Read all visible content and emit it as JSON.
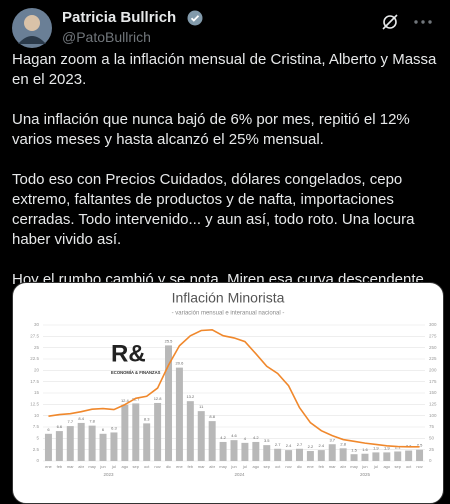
{
  "tweet": {
    "author": {
      "name": "Patricia Bullrich",
      "handle": "@PatoBullrich"
    },
    "paragraphs": [
      "Hagan zoom a la inflación mensual de Cristina, Alberto y Massa en el 2023.",
      "Una inflación que nunca bajó de 6% por mes, repitió el 12% varios meses y hasta alcanzó el 25% mensual.",
      "Todo eso con Precios Cuidados, dólares congelados, cepo extremo, faltantes de productos y de nafta, importaciones cerradas. Todo intervenido... y aun así, todo roto. Una locura haber vivido así.",
      "Hoy el rumbo cambió y se nota. Miren esa curva descendente. Decisión para hacer lo que había que hacer. Bien por Toto y el Presidente."
    ]
  },
  "logo": {
    "mark": "R&",
    "caption": "ECONOMÍA & FINANZAS"
  },
  "chart_data": {
    "type": "bar",
    "title": "Inflación Minorista",
    "subtitle": "- variación mensual e interanual nacional -",
    "categories": [
      "ene",
      "feb",
      "mar",
      "abr",
      "may",
      "jun",
      "jul",
      "ago",
      "sep",
      "oct",
      "nov",
      "dic",
      "ene",
      "feb",
      "mar",
      "abr",
      "may",
      "jun",
      "jul",
      "ago",
      "sep",
      "oct",
      "nov",
      "dic",
      "ene",
      "feb",
      "mar",
      "abr",
      "may",
      "jun",
      "jul",
      "ago",
      "sep",
      "oct",
      "nov"
    ],
    "years": [
      "2023",
      "2024",
      "2025"
    ],
    "series": [
      {
        "name": "mensual",
        "color": "#b8b8b8",
        "values": [
          6,
          6.6,
          7.7,
          8.4,
          7.8,
          6,
          6.3,
          12.4,
          12.7,
          8.3,
          12.8,
          25.5,
          20.6,
          13.2,
          11,
          8.8,
          4.2,
          4.6,
          4,
          4.2,
          3.5,
          2.7,
          2.4,
          2.7,
          2.2,
          2.4,
          3.7,
          2.8,
          1.5,
          1.6,
          1.9,
          1.9,
          2.1,
          2.3,
          2.5
        ]
      },
      {
        "name": "interanual",
        "color": "#f0882c",
        "axis": "y2",
        "values": [
          98.8,
          102.5,
          104.3,
          108.8,
          114.2,
          115.6,
          113.4,
          124.4,
          138.3,
          142.7,
          160.9,
          211.4,
          254.2,
          276.2,
          287.9,
          289.4,
          276.4,
          271.5,
          263.4,
          236.7,
          209,
          193,
          166,
          117.8,
          84.5,
          66.9,
          55.9,
          47.3,
          43.5,
          39.4,
          36.6,
          33.6,
          31.8,
          31.3,
          31.4
        ]
      }
    ],
    "ylim": [
      0,
      30
    ],
    "yticks": [
      0,
      2.5,
      5,
      7.5,
      10,
      12.5,
      15,
      17.5,
      20,
      22.5,
      25,
      27.5,
      30
    ],
    "y2lim": [
      0,
      300
    ],
    "y2ticks": [
      0,
      25,
      50,
      75,
      100,
      125,
      150,
      175,
      200,
      225,
      250,
      275,
      300
    ],
    "grid": true
  }
}
